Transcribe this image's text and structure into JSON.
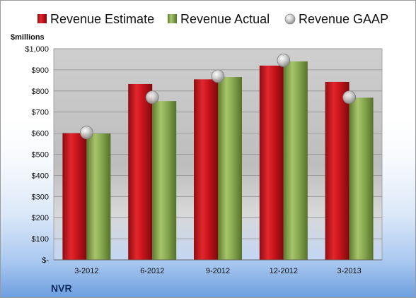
{
  "company": "NVR",
  "unit_label": "$millions",
  "legend": {
    "estimate": "Revenue Estimate",
    "actual": "Revenue Actual",
    "gaap": "Revenue GAAP"
  },
  "colors": {
    "estimate": "#c8141b",
    "actual": "#8aab52",
    "gaap": "#b8b8b8",
    "plot_top": "#cccccc",
    "plot_bottom": "#c6d8f2"
  },
  "chart_data": {
    "type": "bar",
    "categories": [
      "3-2012",
      "6-2012",
      "9-2012",
      "12-2012",
      "3-2013"
    ],
    "series": [
      {
        "name": "Revenue Estimate",
        "type": "bar",
        "values": [
          600,
          833,
          855,
          920,
          843
        ]
      },
      {
        "name": "Revenue Actual",
        "type": "bar",
        "values": [
          598,
          752,
          866,
          940,
          768
        ]
      },
      {
        "name": "Revenue GAAP",
        "type": "scatter",
        "values": [
          603,
          770,
          870,
          945,
          770
        ]
      }
    ],
    "ylim": [
      0,
      1000
    ],
    "yticks": [
      0,
      100,
      200,
      300,
      400,
      500,
      600,
      700,
      800,
      900,
      1000
    ],
    "ytick_labels": [
      "$-",
      "$100",
      "$200",
      "$300",
      "$400",
      "$500",
      "$600",
      "$700",
      "$800",
      "$900",
      "$1,000"
    ],
    "ylabel": "$millions",
    "xlabel": "",
    "grid": true,
    "legend_position": "top"
  }
}
